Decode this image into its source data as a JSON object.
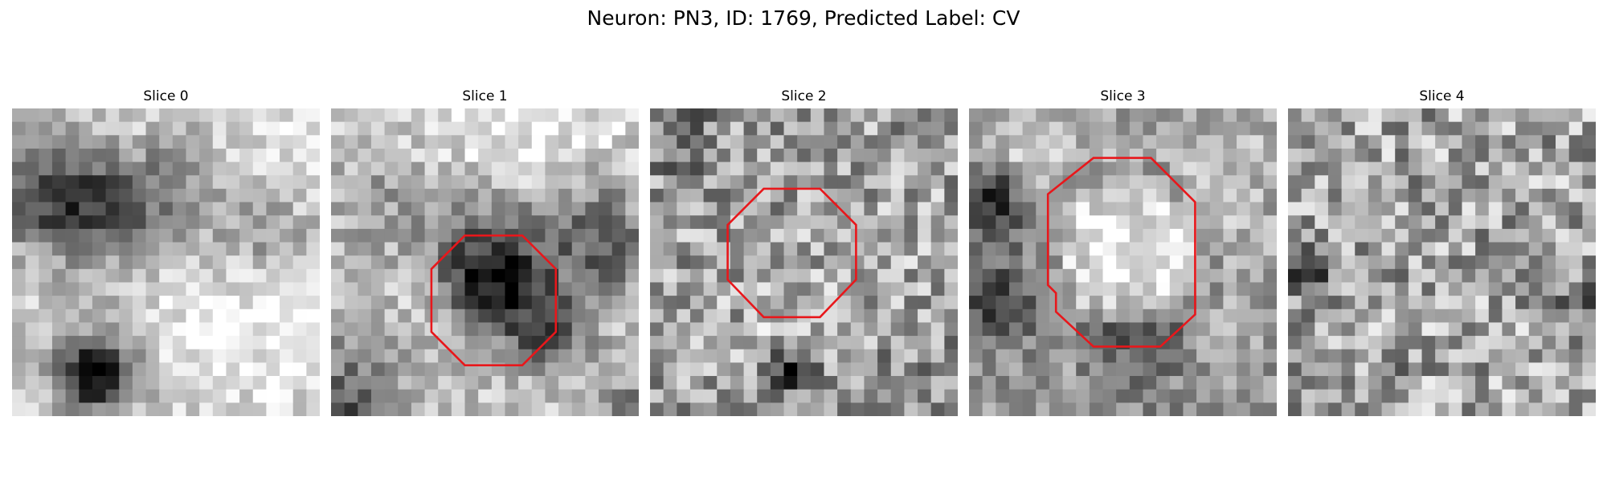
{
  "figure": {
    "title": "Neuron: PN3, ID: 1769, Predicted Label: CV"
  },
  "panels": [
    {
      "title": "Slice 0",
      "has_contour": false
    },
    {
      "title": "Slice 1",
      "has_contour": true
    },
    {
      "title": "Slice 2",
      "has_contour": true
    },
    {
      "title": "Slice 3",
      "has_contour": true
    },
    {
      "title": "Slice 4",
      "has_contour": false
    }
  ],
  "colors": {
    "contour": "#e8171b",
    "background": "#ffffff"
  },
  "colormap": "gray"
}
